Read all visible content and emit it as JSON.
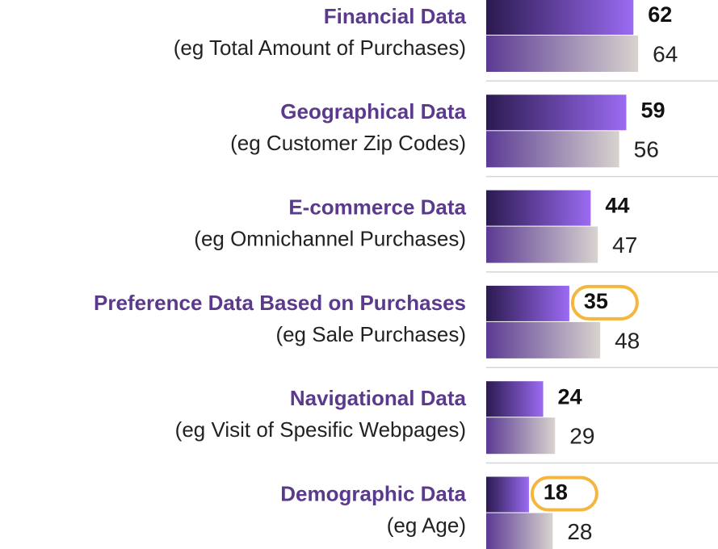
{
  "chart_data": {
    "type": "hbar",
    "categories": [
      "Financial Data",
      "Geographical Data",
      "E-commerce Data",
      "Preference Data Based on Purchases",
      "Navigational Data",
      "Demographic Data"
    ],
    "subtitles": [
      "(eg Total Amount of Purchases)",
      "(eg Customer Zip Codes)",
      "(eg Omnichannel Purchases)",
      "(eg Sale Purchases)",
      "(eg Visit of Spesific Webpages)",
      "(eg Age)"
    ],
    "series": [
      {
        "colors": [
          "#2b1a50",
          "#9b6bf2"
        ],
        "values": [
          62,
          59,
          44,
          35,
          24,
          18
        ],
        "highlight": [
          false,
          false,
          false,
          true,
          false,
          true
        ]
      },
      {
        "colors": [
          "#5b3a94",
          "#d8d3cf"
        ],
        "values": [
          64,
          56,
          47,
          48,
          29,
          28
        ]
      }
    ],
    "xlim": [
      0,
      100
    ],
    "highlight_color": "#f4b63c",
    "title_color": "#5b3a8e"
  }
}
